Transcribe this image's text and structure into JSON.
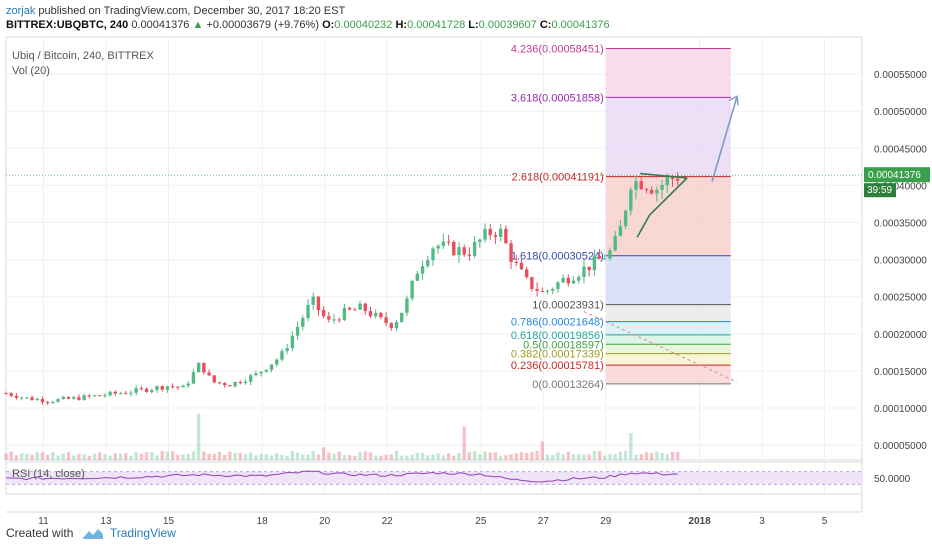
{
  "header": {
    "author": "zorjak",
    "published": " published on TradingView.com, December 30, 2017 18:20 EST",
    "symbol_line_prefix": "BITTREX:UBQBTC, 240",
    "last": "0.00041376",
    "change": "+0.00003679 (+9.76%)",
    "o_label": "O:",
    "o": "0.00040232",
    "h_label": "H:",
    "h": "0.00041728",
    "l_label": "L:",
    "l": "0.00039607",
    "c_label": "C:",
    "c": "0.00041376"
  },
  "main_panel": {
    "title": "Ubiq / Bitcoin, 240, BITTREX",
    "volume_label": "Vol (20)"
  },
  "rsi_panel": {
    "label": "RSI (14, close)",
    "value_label": "50.0000"
  },
  "price_badge": {
    "price": "0.00041376",
    "countdown": "39:59",
    "color": "#3a9f4a"
  },
  "footer": {
    "created_with": "Created with",
    "brand": "TradingView"
  },
  "colors": {
    "up": "#53b987",
    "down": "#eb4d5c",
    "grid": "#eef0f3"
  },
  "chart_data": {
    "type": "candlestick",
    "y_axis": {
      "range": [
        3e-05,
        0.0006
      ],
      "ticks": [
        "0.00005000",
        "0.00010000",
        "0.00015000",
        "0.00020000",
        "0.00025000",
        "0.00030000",
        "0.00035000",
        "0.00040000",
        "0.00045000",
        "0.00050000",
        "0.00055000"
      ],
      "tick_values": [
        5e-05,
        0.0001,
        0.00015,
        0.0002,
        0.00025,
        0.0003,
        0.00035,
        0.0004,
        0.00045,
        0.0005,
        0.00055
      ]
    },
    "x_axis": {
      "ticks": [
        "11",
        "13",
        "15",
        "18",
        "20",
        "22",
        "25",
        "27",
        "29",
        "2018",
        "3",
        "5"
      ],
      "tick_days": [
        11,
        13,
        15,
        18,
        20,
        22,
        25,
        27,
        29,
        32,
        34,
        36
      ],
      "unit": "day of Dec 2017 (32 = Jan 1 2018)"
    },
    "fibonacci": {
      "day_range": [
        29.0,
        33.0
      ],
      "levels": [
        {
          "label": "4.236(0.00058451)",
          "price": 0.00058451,
          "color": "#c23d8e",
          "fill": "#f7d0e6"
        },
        {
          "label": "3.618(0.00051858)",
          "price": 0.00051858,
          "color": "#9c27b0",
          "fill": "#e5d4f3"
        },
        {
          "label": "2.618(0.00041191)",
          "price": 0.00041191,
          "color": "#c62828",
          "fill": "#f5c9c6"
        },
        {
          "label": "1.618(0.00030524)",
          "price": 0.00030524,
          "color": "#3949ab",
          "fill": "#d2d7f4"
        },
        {
          "label": "1(0.00023931)",
          "price": 0.00023931,
          "color": "#555555",
          "fill": "#e6e6e6"
        },
        {
          "label": "0.786(0.00021648)",
          "price": 0.00021648,
          "color": "#1e88e5",
          "fill": "#d1ecf5"
        },
        {
          "label": "0.618(0.00019856)",
          "price": 0.00019856,
          "color": "#26a69a",
          "fill": "#d2f0e2"
        },
        {
          "label": "0.5(0.00018597)",
          "price": 0.00018597,
          "color": "#43a047",
          "fill": "#e1f3cf"
        },
        {
          "label": "0.382(0.00017339)",
          "price": 0.00017339,
          "color": "#9e9d24",
          "fill": "#f5f1c8"
        },
        {
          "label": "0.236(0.00015781)",
          "price": 0.00015781,
          "color": "#c62828",
          "fill": "#f6cfcd"
        },
        {
          "label": "0(0.00013264)",
          "price": 0.00013264,
          "color": "#777777",
          "fill": null
        }
      ]
    },
    "trend_lines": [
      {
        "name": "triangle-top",
        "from": [
          30.1,
          0.000416
        ],
        "to": [
          31.6,
          0.00041
        ],
        "color": "#2e7d4f"
      },
      {
        "name": "triangle-bottom",
        "from": [
          30.4,
          0.00036
        ],
        "to": [
          31.6,
          0.00041
        ],
        "color": "#2e7d4f"
      },
      {
        "name": "breakout-lead",
        "from": [
          30.0,
          0.00033
        ],
        "to": [
          30.4,
          0.00036
        ],
        "color": "#2e7d4f"
      },
      {
        "name": "target-arrow",
        "from": [
          32.4,
          0.000405
        ],
        "to": [
          33.2,
          0.00052
        ],
        "color": "#7e9bc9"
      },
      {
        "name": "down-dotted",
        "from": [
          28.3,
          0.00023
        ],
        "to": [
          33.2,
          0.000135
        ],
        "color": "#d88a8a"
      }
    ],
    "price_anchors": [
      [
        9.8,
        0.00012
      ],
      [
        10.5,
        0.000113
      ],
      [
        11.2,
        0.00011
      ],
      [
        12.0,
        0.000113
      ],
      [
        12.8,
        0.000117
      ],
      [
        13.6,
        0.000121
      ],
      [
        14.4,
        0.000126
      ],
      [
        15.0,
        0.00013
      ],
      [
        15.5,
        0.000127
      ],
      [
        16.0,
        0.00016
      ],
      [
        16.4,
        0.000135
      ],
      [
        17.0,
        0.000132
      ],
      [
        17.8,
        0.000145
      ],
      [
        18.6,
        0.00017
      ],
      [
        19.2,
        0.000215
      ],
      [
        19.6,
        0.000245
      ],
      [
        20.1,
        0.000215
      ],
      [
        20.6,
        0.000228
      ],
      [
        21.2,
        0.000235
      ],
      [
        21.8,
        0.000218
      ],
      [
        22.2,
        0.000212
      ],
      [
        22.6,
        0.00024
      ],
      [
        23.0,
        0.00029
      ],
      [
        23.5,
        0.00032
      ],
      [
        24.0,
        0.000315
      ],
      [
        24.6,
        0.00031
      ],
      [
        25.2,
        0.000335
      ],
      [
        25.6,
        0.00034
      ],
      [
        26.0,
        0.0003
      ],
      [
        26.5,
        0.000268
      ],
      [
        27.0,
        0.000255
      ],
      [
        27.6,
        0.000272
      ],
      [
        28.2,
        0.000285
      ],
      [
        28.8,
        0.0003
      ],
      [
        29.2,
        0.000312
      ],
      [
        29.5,
        0.000345
      ],
      [
        29.8,
        0.000405
      ],
      [
        30.2,
        0.000405
      ],
      [
        30.6,
        0.000395
      ],
      [
        31.0,
        0.000408
      ],
      [
        31.4,
        0.000414
      ]
    ],
    "volume_peaks": [
      [
        16.0,
        0.55
      ],
      [
        24.5,
        0.4
      ],
      [
        29.8,
        0.32
      ],
      [
        27.0,
        0.22
      ],
      [
        20.0,
        0.15
      ]
    ],
    "rsi_range": [
      0,
      100
    ],
    "rsi_anchors": [
      [
        9.8,
        48
      ],
      [
        12,
        50
      ],
      [
        14,
        53
      ],
      [
        16,
        60
      ],
      [
        18,
        56
      ],
      [
        19.5,
        70
      ],
      [
        20.5,
        62
      ],
      [
        22,
        58
      ],
      [
        23.5,
        66
      ],
      [
        25,
        62
      ],
      [
        26,
        45
      ],
      [
        27,
        40
      ],
      [
        28,
        48
      ],
      [
        29,
        52
      ],
      [
        29.8,
        66
      ],
      [
        31,
        62
      ],
      [
        31.4,
        63
      ]
    ]
  }
}
